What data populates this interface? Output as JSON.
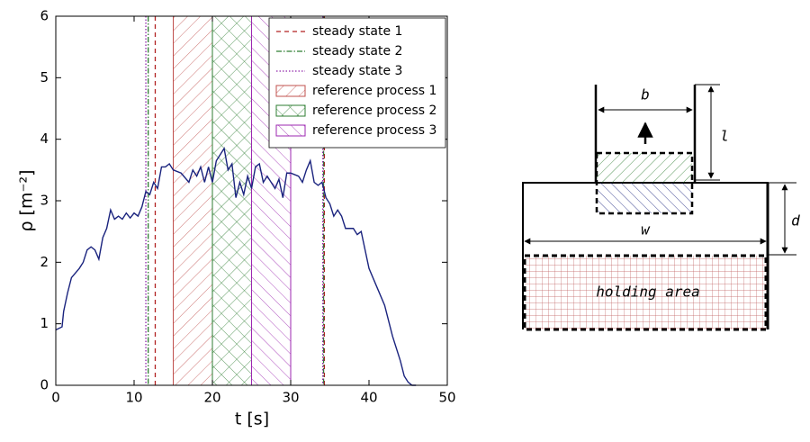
{
  "chart_data": {
    "type": "line",
    "xlabel": "t [s]",
    "ylabel": "ρ [m⁻²]",
    "x": [
      0,
      0.8,
      1,
      1.5,
      2,
      3,
      3.5,
      4,
      4.5,
      5,
      5.5,
      6,
      6.5,
      7,
      7.5,
      8,
      8.5,
      9,
      9.5,
      10,
      10.5,
      11,
      11.5,
      12,
      12.5,
      13,
      13.5,
      14,
      14.5,
      15,
      16,
      17,
      17.5,
      18,
      18.5,
      19,
      19.5,
      20,
      20.5,
      21,
      21.5,
      22,
      22.5,
      23,
      23.5,
      24,
      24.5,
      25,
      25.5,
      26,
      26.5,
      27,
      28,
      28.5,
      29,
      29.5,
      30,
      31,
      31.5,
      32,
      32.5,
      33,
      33.5,
      34,
      34.5,
      35,
      35.5,
      36,
      36.5,
      37,
      38,
      38.5,
      39,
      39.5,
      40,
      41,
      42,
      43,
      44,
      44.5,
      45,
      45.5,
      46
    ],
    "series": [
      {
        "color": "#1a237e",
        "values": [
          0.9,
          0.95,
          1.2,
          1.5,
          1.75,
          1.9,
          2.0,
          2.2,
          2.25,
          2.2,
          2.05,
          2.4,
          2.55,
          2.85,
          2.7,
          2.75,
          2.7,
          2.8,
          2.72,
          2.8,
          2.75,
          2.9,
          3.15,
          3.1,
          3.3,
          3.2,
          3.55,
          3.55,
          3.6,
          3.5,
          3.45,
          3.3,
          3.5,
          3.4,
          3.55,
          3.3,
          3.55,
          3.3,
          3.65,
          3.75,
          3.85,
          3.5,
          3.6,
          3.05,
          3.3,
          3.1,
          3.4,
          3.2,
          3.55,
          3.6,
          3.3,
          3.4,
          3.2,
          3.35,
          3.05,
          3.45,
          3.45,
          3.4,
          3.3,
          3.5,
          3.65,
          3.3,
          3.25,
          3.3,
          3.05,
          2.95,
          2.75,
          2.85,
          2.75,
          2.55,
          2.55,
          2.45,
          2.5,
          2.2,
          1.9,
          1.6,
          1.3,
          0.8,
          0.4,
          0.15,
          0.05,
          0,
          0
        ]
      }
    ],
    "reference_lines": [
      {
        "name": "steady state 1",
        "color": "#b22222",
        "style": "dashed",
        "values": [
          12.7,
          34.3
        ]
      },
      {
        "name": "steady state 2",
        "color": "#2e7d32",
        "style": "dashdot",
        "values": [
          11.8,
          34.2
        ]
      },
      {
        "name": "steady state 3",
        "color": "#8e24aa",
        "style": "dotted",
        "values": [
          11.5,
          34.1
        ]
      }
    ],
    "spans": [
      {
        "name": "reference process 1",
        "color": "#c0504d",
        "values": [
          15,
          20
        ]
      },
      {
        "name": "reference process 2",
        "color": "#2e7d32",
        "values": [
          20,
          25
        ]
      },
      {
        "name": "reference process 3",
        "color": "#9c27b0",
        "values": [
          25,
          30
        ]
      }
    ],
    "xlim": [
      0,
      50
    ],
    "xticks": [
      0,
      10,
      20,
      30,
      40,
      50
    ],
    "ylim": [
      0,
      6
    ],
    "yticks": [
      0,
      1,
      2,
      3,
      4,
      5,
      6
    ],
    "legend": "upper right"
  },
  "diagram": {
    "labels": {
      "b": "b",
      "l": "l",
      "d": "d",
      "w": "w",
      "area": "holding area"
    }
  }
}
